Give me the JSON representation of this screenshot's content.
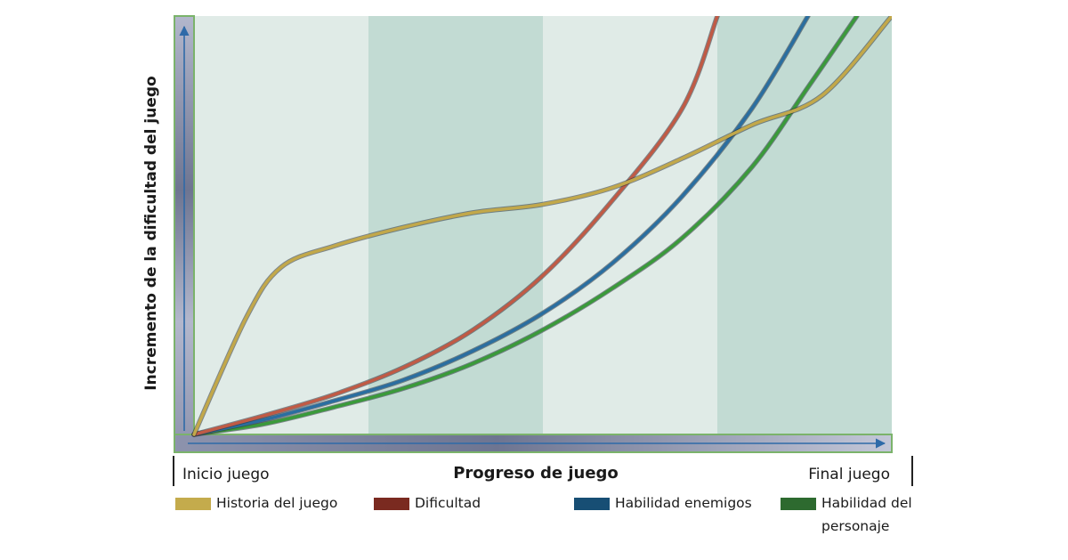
{
  "chart_data": {
    "type": "line",
    "ylabel": "Incremento de la dificultad del juego",
    "xlabel": "Progreso de juego",
    "x_tick_labels": {
      "start": "Inicio juego",
      "end": "Final juego"
    },
    "xlim": [
      0,
      100
    ],
    "ylim": [
      0,
      100
    ],
    "grid": false,
    "background_bands": {
      "count": 4,
      "colors": [
        "#e0ebe7",
        "#c2dbd3"
      ]
    },
    "legend_position": "bottom",
    "series": [
      {
        "name": "Historia del juego",
        "color": "#c2a84a",
        "legend_color": "#c4ab4c",
        "points": [
          [
            0,
            0
          ],
          [
            7.5,
            28
          ],
          [
            12.5,
            40
          ],
          [
            20,
            45
          ],
          [
            30,
            49.5
          ],
          [
            40,
            53
          ],
          [
            50,
            55
          ],
          [
            60,
            59
          ],
          [
            70,
            66
          ],
          [
            80,
            74
          ],
          [
            90,
            81
          ],
          [
            100,
            100
          ]
        ]
      },
      {
        "name": "Dificultad",
        "color": "#c05a45",
        "legend_color": "#7a2a20",
        "points": [
          [
            0,
            0
          ],
          [
            10,
            4.5
          ],
          [
            20,
            9.5
          ],
          [
            30,
            16
          ],
          [
            40,
            25
          ],
          [
            50,
            38
          ],
          [
            60,
            56
          ],
          [
            70,
            78
          ],
          [
            75,
            100
          ]
        ]
      },
      {
        "name": "Habilidad enemigos",
        "color": "#2a6ea0",
        "legend_color": "#174e74",
        "points": [
          [
            0,
            0
          ],
          [
            10,
            3.5
          ],
          [
            20,
            8
          ],
          [
            30,
            13
          ],
          [
            40,
            20
          ],
          [
            50,
            29
          ],
          [
            60,
            41
          ],
          [
            70,
            57
          ],
          [
            80,
            78
          ],
          [
            88,
            100
          ]
        ]
      },
      {
        "name": "Habilidad del personaje",
        "color": "#3a9a3a",
        "legend_color": "#2d6a2f",
        "points": [
          [
            0,
            0
          ],
          [
            10,
            2.5
          ],
          [
            20,
            6.5
          ],
          [
            30,
            11
          ],
          [
            40,
            17
          ],
          [
            50,
            25
          ],
          [
            60,
            35
          ],
          [
            70,
            47
          ],
          [
            80,
            64
          ],
          [
            88,
            83
          ],
          [
            95,
            100
          ]
        ]
      }
    ]
  }
}
